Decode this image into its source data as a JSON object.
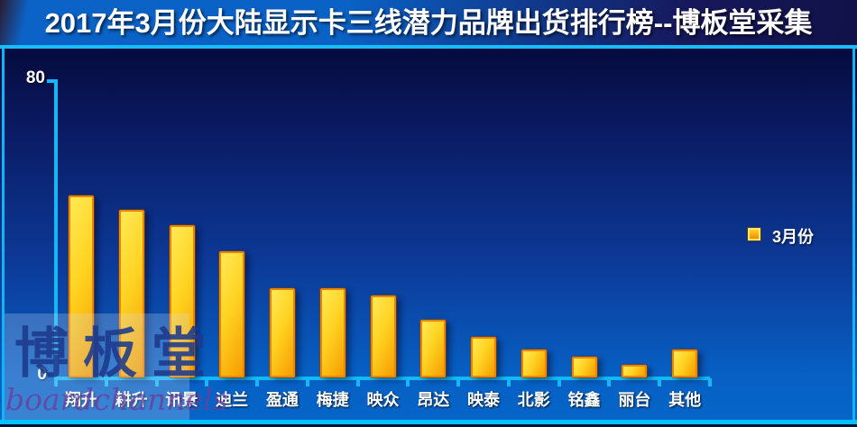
{
  "title": "2017年3月份大陆显示卡三线潜力品牌出货排行榜--博板堂采集",
  "y_axis": {
    "max_label": "80",
    "min_label": "0"
  },
  "legend": {
    "label": "3月份"
  },
  "watermark": {
    "seal_text": "博板堂",
    "script_text": "boardchannels"
  },
  "colors": {
    "header_blue": "#0a62c6",
    "header_dark": "#131450",
    "panel_top": "#060b3e",
    "panel_bottom": "#0665c8",
    "axis_cyan": "#14b8f4",
    "bar_yellow": "#ffe955",
    "bar_orange": "#f69c00",
    "bar_border": "#ec8404",
    "text": "#ffffff",
    "watermark_seal": "#1d3a8c",
    "watermark_script": "#6a3f9e"
  },
  "chart_data": {
    "type": "bar",
    "title": "2017年3月份大陆显示卡三线潜力品牌出货排行榜--博板堂采集",
    "categories": [
      "翔升",
      "耕升",
      "讯景",
      "迪兰",
      "盈通",
      "梅捷",
      "映众",
      "昂达",
      "映泰",
      "北影",
      "铭鑫",
      "丽台",
      "其他"
    ],
    "series": [
      {
        "name": "3月份",
        "values": [
          49,
          45,
          41,
          34,
          24,
          24,
          22,
          15.5,
          11,
          7.5,
          5.5,
          3.5,
          7.5
        ]
      }
    ],
    "xlabel": "",
    "ylabel": "",
    "ylim": [
      0,
      80
    ],
    "yticks": [
      0,
      80
    ],
    "grid": false,
    "legend_position": "middle-right",
    "background": "dark-blue-gradient"
  }
}
